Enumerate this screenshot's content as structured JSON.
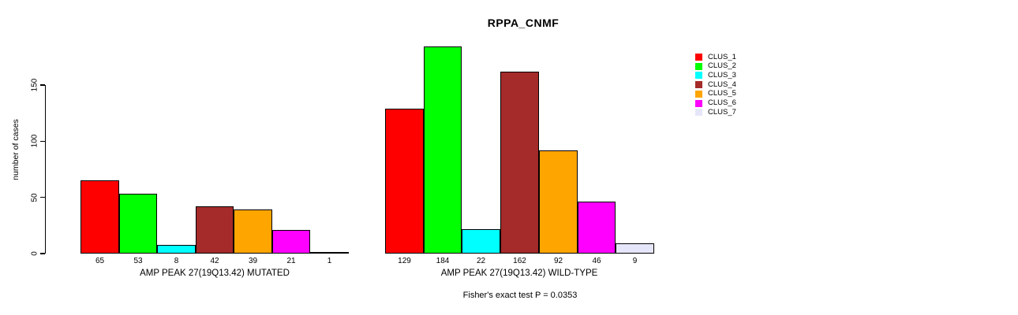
{
  "chart_data": {
    "type": "bar",
    "title": "RPPA_CNMF",
    "ylabel": "number of cases",
    "xlabel": "",
    "ylim": [
      0,
      150
    ],
    "yticks": [
      0,
      50,
      100,
      150
    ],
    "grid": false,
    "legend_position": "right",
    "categories": [
      "CLUS_1",
      "CLUS_2",
      "CLUS_3",
      "CLUS_4",
      "CLUS_5",
      "CLUS_6",
      "CLUS_7"
    ],
    "colors": [
      "#FF0000",
      "#00FF00",
      "#00FFFF",
      "#A52A2A",
      "#FFA500",
      "#FF00FF",
      "#E6E6FA"
    ],
    "groups": [
      {
        "label": "AMP PEAK 27(19Q13.42) MUTATED",
        "values": [
          65,
          53,
          8,
          42,
          39,
          21,
          1
        ]
      },
      {
        "label": "AMP PEAK 27(19Q13.42) WILD-TYPE",
        "values": [
          129,
          184,
          22,
          162,
          92,
          46,
          9
        ]
      }
    ],
    "bar_value_labels_shown": true,
    "annotation": "Fisher's exact test P = 0.0353"
  }
}
